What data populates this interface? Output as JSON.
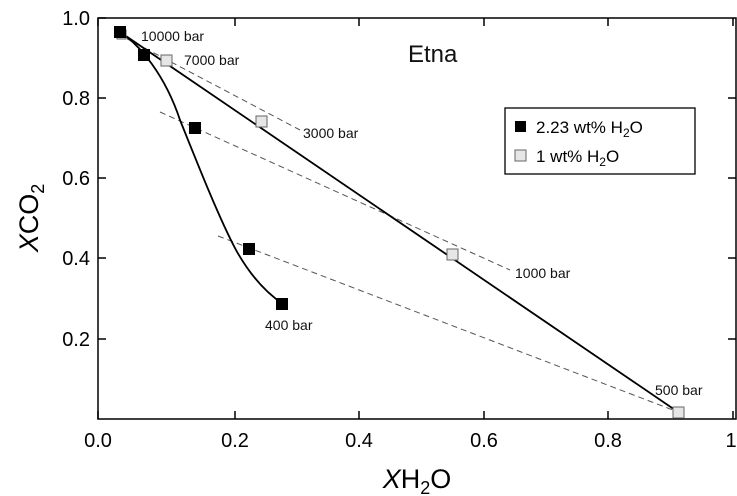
{
  "chart_data": {
    "type": "scatter",
    "title": "Etna",
    "xlabel": "XH2O",
    "ylabel": "XCO2",
    "xlim": [
      0,
      1
    ],
    "ylim": [
      0,
      1
    ],
    "x_ticks": [
      "0.0",
      "0.2",
      "0.4",
      "0.6",
      "0.8",
      "1"
    ],
    "y_ticks": [
      "0.2",
      "0.4",
      "0.6",
      "0.8",
      "1.0"
    ],
    "legend_position": "right",
    "series": [
      {
        "name": "2.23 wt% H2O",
        "marker": "filled-square",
        "color": "#000000",
        "points": [
          {
            "x": 0.03,
            "y": 0.97
          },
          {
            "x": 0.065,
            "y": 0.91
          },
          {
            "x": 0.145,
            "y": 0.72
          },
          {
            "x": 0.225,
            "y": 0.42
          },
          {
            "x": 0.28,
            "y": 0.28
          }
        ]
      },
      {
        "name": "1 wt% H2O",
        "marker": "open-square",
        "color": "#999999",
        "points": [
          {
            "x": 0.035,
            "y": 0.965
          },
          {
            "x": 0.095,
            "y": 0.89
          },
          {
            "x": 0.25,
            "y": 0.74
          },
          {
            "x": 0.55,
            "y": 0.405
          },
          {
            "x": 0.92,
            "y": 0.01
          }
        ]
      }
    ],
    "isobars": [
      {
        "label": "10000 bar",
        "from": {
          "x": 0.03,
          "y": 0.97
        },
        "to": {
          "x": 0.035,
          "y": 0.965
        }
      },
      {
        "label": "7000 bar",
        "from": {
          "x": 0.065,
          "y": 0.91
        },
        "to": {
          "x": 0.095,
          "y": 0.89
        }
      },
      {
        "label": "3000 bar",
        "from": {
          "x": 0.08,
          "y": 0.78
        },
        "to": {
          "x": 0.27,
          "y": 0.72
        }
      },
      {
        "label": "1000 bar",
        "from": {
          "x": 0.15,
          "y": 0.72
        },
        "to": {
          "x": 0.62,
          "y": 0.36
        }
      },
      {
        "label": "400 bar",
        "from": {
          "x": 0.15,
          "y": 0.52
        },
        "to": {
          "x": 0.92,
          "y": 0.01
        }
      },
      {
        "label": "500 bar",
        "from": {
          "x": 0.03,
          "y": 0.97
        },
        "to": {
          "x": 0.92,
          "y": 0.01
        }
      }
    ],
    "legend": [
      {
        "label": "2.23 wt% H",
        "sub": "2",
        "suffix": "O"
      },
      {
        "label": "1 wt% H",
        "sub": "2",
        "suffix": "O"
      }
    ]
  }
}
